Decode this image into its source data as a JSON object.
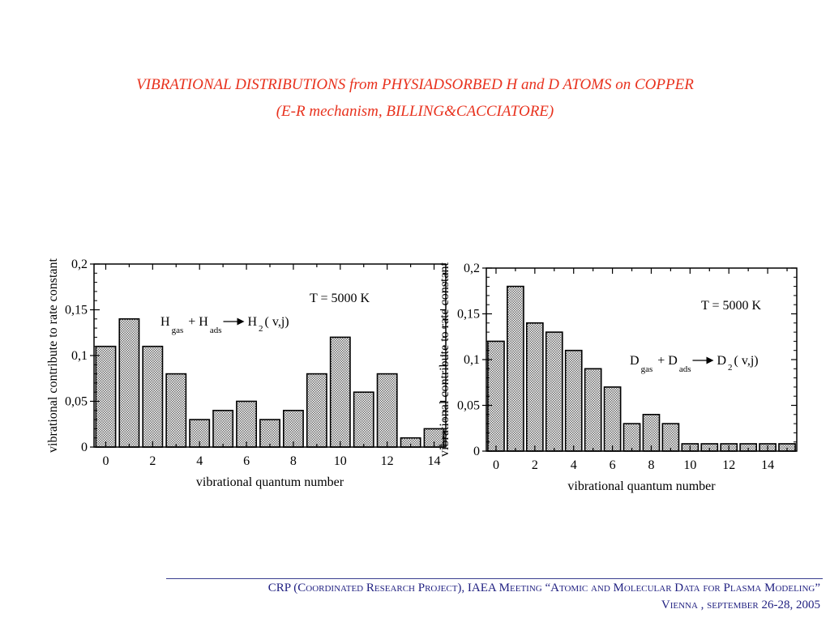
{
  "header": {
    "title_line1": "VIBRATIONAL DISTRIBUTIONS from PHYSIADSORBED H and D ATOMS on COPPER",
    "title_line2": "(E-R mechanism,  BILLING&CACCIATORE)"
  },
  "colors": {
    "title": "#e8321e",
    "bar_fill": "#a8a8a8",
    "bar_stroke": "#000000",
    "footer_text": "#1f1f80"
  },
  "chart_data": [
    {
      "type": "bar",
      "title": "",
      "annotation_temperature": "T = 5000 K",
      "reaction": {
        "a": "H",
        "a_sub": "gas",
        "plus": "+ H",
        "b_sub": "ads",
        "product": "H",
        "product_sub": "2",
        "state": "( v,j)"
      },
      "xlabel": "vibrational quantum number",
      "ylabel": "vibrational contribute to rate constant",
      "x": [
        0,
        1,
        2,
        3,
        4,
        5,
        6,
        7,
        8,
        9,
        10,
        11,
        12,
        13,
        14
      ],
      "values": [
        0.11,
        0.14,
        0.11,
        0.08,
        0.03,
        0.04,
        0.05,
        0.03,
        0.04,
        0.08,
        0.12,
        0.06,
        0.08,
        0.01,
        0.02
      ],
      "xlim": [
        -0.5,
        14.5
      ],
      "ylim": [
        0,
        0.2
      ],
      "xticks": [
        "0",
        "2",
        "4",
        "6",
        "8",
        "10",
        "12",
        "14"
      ],
      "yticks": [
        "0",
        "0,05",
        "0,1",
        "0,15",
        "0,2"
      ],
      "grid": false
    },
    {
      "type": "bar",
      "title": "",
      "annotation_temperature": "T = 5000 K",
      "reaction": {
        "a": "D",
        "a_sub": "gas",
        "plus": "+ D",
        "b_sub": "ads",
        "product": "D",
        "product_sub": "2",
        "state": "( v,j)"
      },
      "xlabel": "vibrational quantum number",
      "ylabel": "vibrational contribute to rate constant",
      "x": [
        0,
        1,
        2,
        3,
        4,
        5,
        6,
        7,
        8,
        9,
        10,
        11,
        12,
        13,
        14,
        15
      ],
      "values": [
        0.12,
        0.18,
        0.14,
        0.13,
        0.11,
        0.09,
        0.07,
        0.03,
        0.04,
        0.03,
        0.008,
        0.008,
        0.008,
        0.008,
        0.008,
        0.008
      ],
      "xlim": [
        -0.5,
        15.5
      ],
      "ylim": [
        0,
        0.2
      ],
      "xticks": [
        "0",
        "2",
        "4",
        "6",
        "8",
        "10",
        "12",
        "14"
      ],
      "yticks": [
        "0",
        "0,05",
        "0,1",
        "0,15",
        "0,2"
      ],
      "grid": false
    }
  ],
  "footer": {
    "line1": "CRP (Coordinated Research Project), IAEA Meeting “Atomic and Molecular Data for Plasma Modeling”",
    "line2": "Vienna , september  26-28, 2005"
  }
}
